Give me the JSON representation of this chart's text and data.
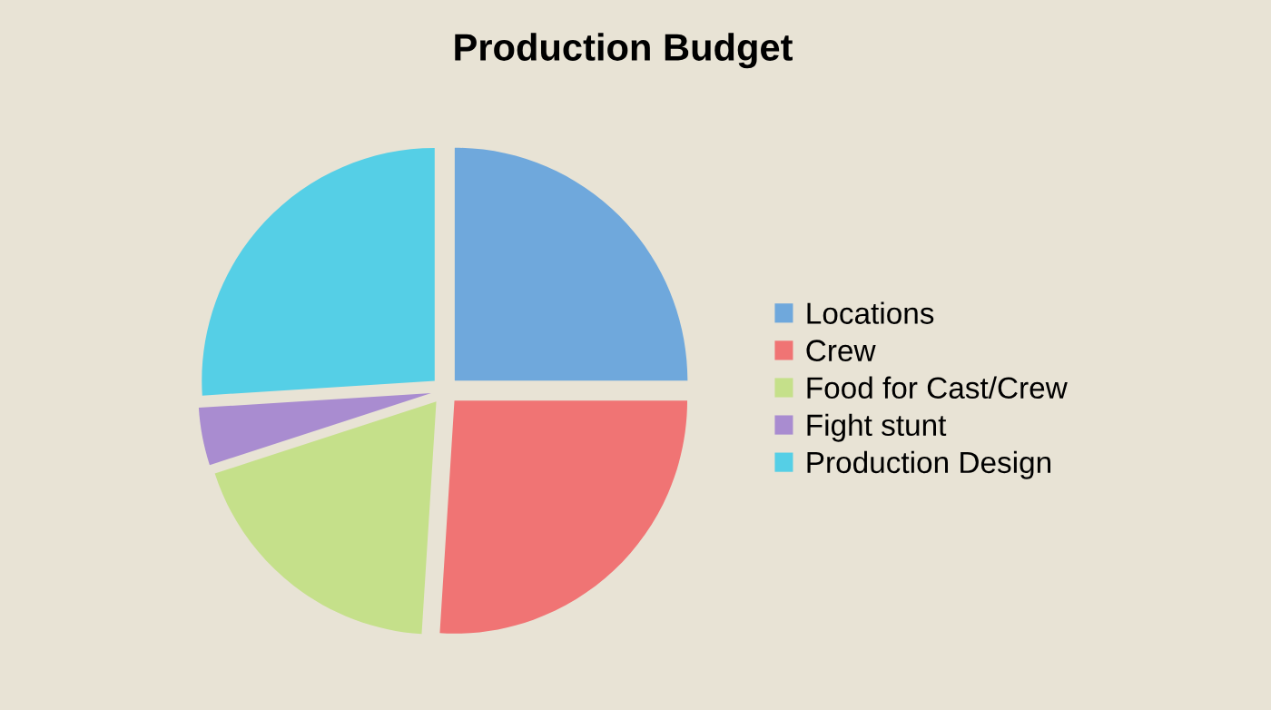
{
  "chart_data": {
    "type": "pie",
    "title": "Production Budget",
    "categories": [
      "Locations",
      "Crew",
      "Food for Cast/Crew",
      "Fight stunt",
      "Production Design"
    ],
    "values": [
      25,
      26,
      19,
      4,
      26
    ],
    "colors": [
      "#6fa8dc",
      "#f07474",
      "#c5e08a",
      "#a98cd0",
      "#55cfe6"
    ],
    "legend": "right"
  }
}
